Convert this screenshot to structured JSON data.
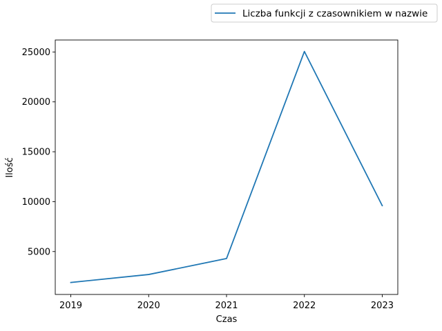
{
  "chart_data": {
    "type": "line",
    "title": "",
    "xlabel": "Czas",
    "ylabel": "Ilość",
    "x": [
      2019,
      2020,
      2021,
      2022,
      2023
    ],
    "x_tick_labels": [
      "2019",
      "2020",
      "2021",
      "2022",
      "2023"
    ],
    "y_ticks": [
      5000,
      10000,
      15000,
      20000,
      25000
    ],
    "y_tick_labels": [
      "5000",
      "10000",
      "15000",
      "20000",
      "25000"
    ],
    "xlim": [
      2018.8,
      2023.2
    ],
    "ylim": [
      700,
      26200
    ],
    "grid": false,
    "legend_position": "top-right (outside, above plot)",
    "series": [
      {
        "name": "Liczba funkcji z czasownikiem w nazwie",
        "color": "#1f77b4",
        "values": [
          1900,
          2700,
          4300,
          25050,
          9600
        ]
      }
    ]
  }
}
